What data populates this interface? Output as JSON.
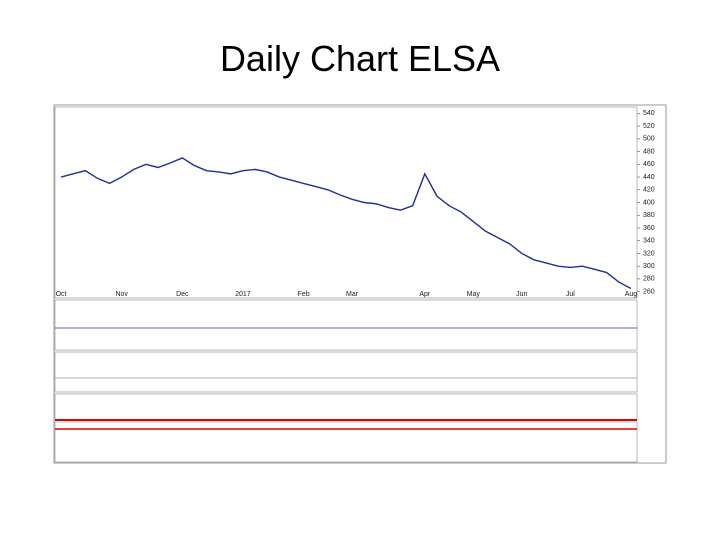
{
  "chart_data": {
    "type": "line",
    "title": "Daily Chart ELSA",
    "categories": [
      "Oct",
      null,
      null,
      null,
      null,
      "Nov",
      null,
      null,
      null,
      null,
      "Dec",
      null,
      null,
      null,
      null,
      "2017",
      null,
      null,
      null,
      null,
      "Feb",
      null,
      null,
      null,
      "Mar",
      null,
      null,
      null,
      null,
      null,
      "Apr",
      null,
      null,
      null,
      "May",
      null,
      null,
      null,
      "Jun",
      null,
      null,
      null,
      "Jul",
      null,
      null,
      null,
      null,
      "Aug"
    ],
    "values": [
      440,
      445,
      450,
      438,
      430,
      440,
      452,
      460,
      455,
      462,
      470,
      458,
      450,
      448,
      445,
      450,
      452,
      448,
      440,
      435,
      430,
      425,
      420,
      412,
      405,
      400,
      398,
      392,
      388,
      395,
      445,
      410,
      395,
      385,
      370,
      355,
      345,
      335,
      320,
      310,
      305,
      300,
      298,
      300,
      295,
      290,
      275,
      265
    ],
    "color": "#1f2f9e",
    "ylim": [
      250,
      550
    ],
    "yticks": [
      540,
      520,
      500,
      480,
      460,
      440,
      420,
      400,
      380,
      360,
      340,
      320,
      300,
      280,
      260
    ],
    "grid": false
  }
}
